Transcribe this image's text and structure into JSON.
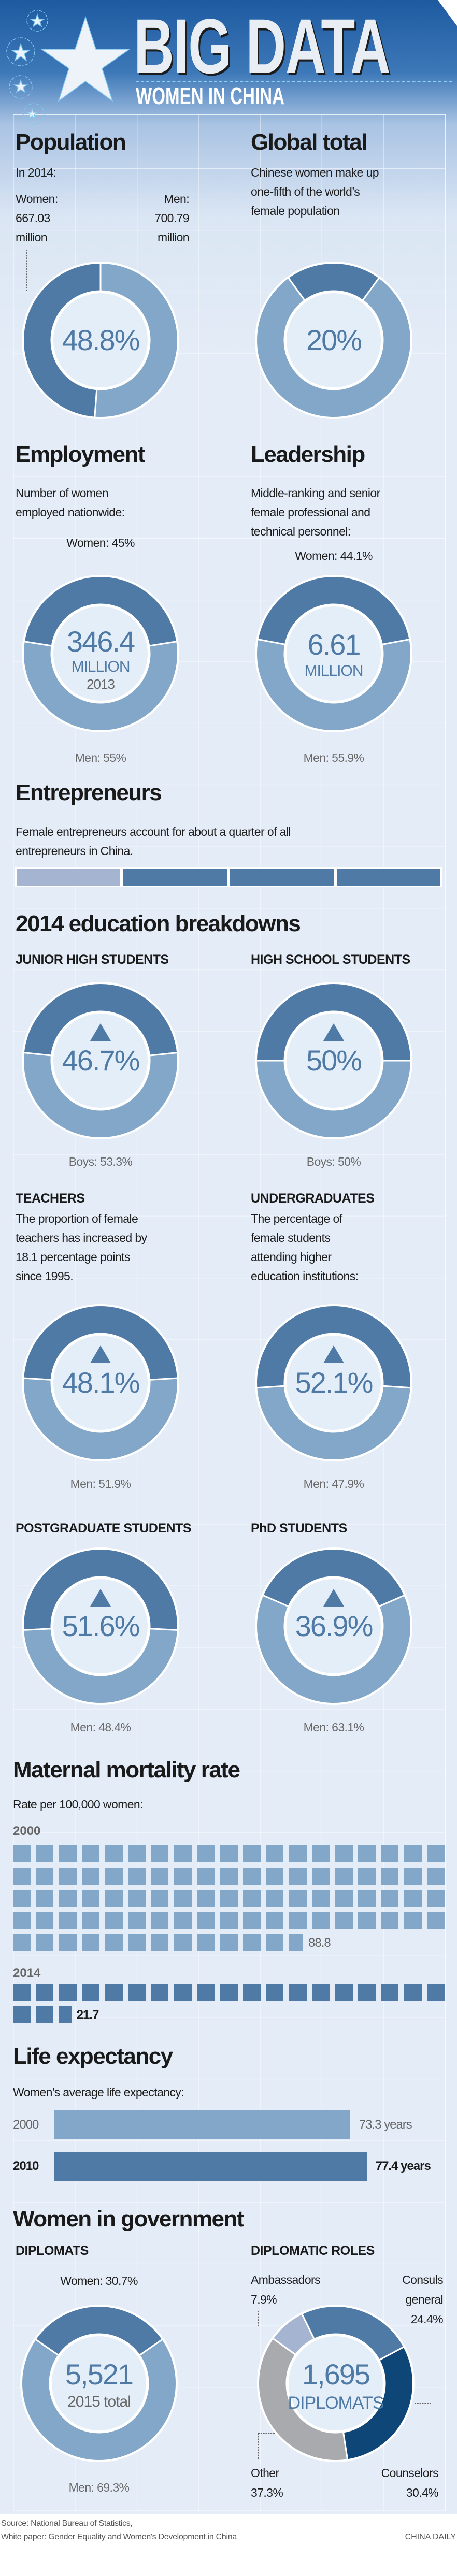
{
  "header": {
    "title": "BIG DATA",
    "subtitle": "WOMEN IN CHINA"
  },
  "colors": {
    "dark": "#4f7aa6",
    "light": "#82a7c9",
    "pale": "#a5b4d0",
    "navy": "#0e4677",
    "gray": "#a8aaad",
    "inner": "#e4eef8"
  },
  "population": {
    "heading": "Population",
    "intro": "In 2014:",
    "women_label": "Women:",
    "women_value": "667.03",
    "women_unit": "million",
    "men_label": "Men:",
    "men_value": "700.79",
    "men_unit": "million",
    "center": "48.8%",
    "women_share": 48.8,
    "men_share": 51.2
  },
  "global": {
    "heading": "Global total",
    "lines": [
      "Chinese women make up",
      "one-fifth of the world’s",
      "female population"
    ],
    "center": "20%",
    "share": 20
  },
  "employment": {
    "heading": "Employment",
    "lines": [
      "Number of women",
      "employed nationwide:"
    ],
    "women": "Women: 45%",
    "men": "Men: 55%",
    "value": "346.4",
    "unit": "MILLION",
    "year": "2013",
    "women_share": 45,
    "men_share": 55
  },
  "leadership": {
    "heading": "Leadership",
    "lines": [
      "Middle-ranking and senior",
      "female professional and",
      "technical personnel:"
    ],
    "women": "Women: 44.1%",
    "men": "Men: 55.9%",
    "value": "6.61",
    "unit": "MILLION",
    "women_share": 44.1,
    "men_share": 55.9
  },
  "entrepreneurs": {
    "heading": "Entrepreneurs",
    "lines": [
      "Female entrepreneurs account for about a quarter of all",
      "entrepreneurs in China."
    ],
    "segments": 4,
    "female_segments": 1
  },
  "education": {
    "heading": "2014 education breakdowns",
    "items": [
      {
        "title": "JUNIOR HIGH STUDENTS",
        "lines": [],
        "center": "46.7%",
        "other": "Boys: 53.3%",
        "female": 46.7,
        "male": 53.3
      },
      {
        "title": "HIGH SCHOOL STUDENTS",
        "lines": [],
        "center": "50%",
        "other": "Boys: 50%",
        "female": 50,
        "male": 50
      },
      {
        "title": "TEACHERS",
        "lines": [
          "The proportion of female",
          "teachers has increased by",
          "18.1 percentage points",
          "since 1995."
        ],
        "center": "48.1%",
        "other": "Men: 51.9%",
        "female": 48.1,
        "male": 51.9
      },
      {
        "title": "UNDERGRADUATES",
        "lines": [
          "The percentage of",
          "female students",
          "attending higher",
          "education institutions:"
        ],
        "center": "52.1%",
        "other": "Men: 47.9%",
        "female": 52.1,
        "male": 47.9
      },
      {
        "title": "POSTGRADUATE STUDENTS",
        "lines": [],
        "center": "51.6%",
        "other": "Men: 48.4%",
        "female": 51.6,
        "male": 48.4
      },
      {
        "title": "PhD STUDENTS",
        "lines": [],
        "center": "36.9%",
        "other": "Men: 63.1%",
        "female": 36.9,
        "male": 63.1
      }
    ]
  },
  "chart_data": {
    "type": "pictogram",
    "title": "Maternal mortality rate",
    "subtitle": "Rate per 100,000 women:",
    "series": [
      {
        "name": "2000",
        "value": 88.8,
        "label": "88.8"
      },
      {
        "name": "2014",
        "value": 21.7,
        "label": "21.7"
      }
    ]
  },
  "life": {
    "heading": "Life expectancy",
    "subtitle": "Women's average life expectancy:",
    "rows": [
      {
        "year": "2000",
        "value": 73.3,
        "label": "73.3 years"
      },
      {
        "year": "2010",
        "value": 77.4,
        "label": "77.4 years"
      }
    ]
  },
  "government": {
    "heading": "Women in government",
    "diplomats": {
      "title": "DIPLOMATS",
      "women": "Women: 30.7%",
      "men": "Men: 69.3%",
      "value": "5,521",
      "sub": "2015 total",
      "women_share": 30.7,
      "men_share": 69.3
    },
    "roles": {
      "title": "DIPLOMATIC ROLES",
      "value": "1,695",
      "unit": "DIPLOMATS",
      "segments": [
        {
          "name": "Consuls general",
          "pct": "24.4%",
          "value": 24.4
        },
        {
          "name": "Counselors",
          "pct": "30.4%",
          "value": 30.4
        },
        {
          "name": "Other",
          "pct": "37.3%",
          "value": 37.3
        },
        {
          "name": "Ambassadors",
          "pct": "7.9%",
          "value": 7.9
        }
      ],
      "label_lines": {
        "consuls_1": "Consuls",
        "consuls_2": "general"
      }
    }
  },
  "footer": {
    "source1": "Source: National Bureau of Statistics,",
    "source2": "White paper: Gender Equality and Women's Development in China",
    "credit": "CHINA DAILY"
  }
}
